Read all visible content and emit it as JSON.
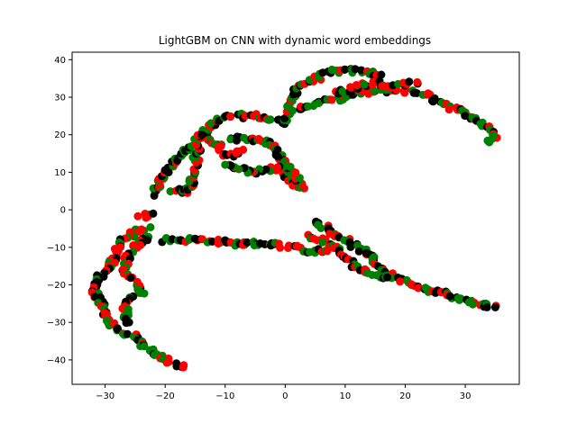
{
  "chart_data": {
    "type": "scatter",
    "title": "LightGBM on CNN with dynamic word embeddings",
    "xlabel": "",
    "ylabel": "",
    "xlim": [
      -35.5,
      39.0
    ],
    "ylim": [
      -46.5,
      42.0
    ],
    "xticks": [
      -30,
      -20,
      -10,
      0,
      10,
      20,
      30
    ],
    "yticks": [
      -40,
      -30,
      -20,
      -10,
      0,
      10,
      20,
      30,
      40
    ],
    "grid": false,
    "legend": "none",
    "colors": [
      "#000000",
      "#ff0000",
      "#008000"
    ],
    "curves": [
      {
        "name": "upper-left-arm",
        "points": [
          [
            -22,
            4
          ],
          [
            -20,
            10
          ],
          [
            -18,
            14
          ],
          [
            -15,
            18
          ],
          [
            -12,
            23
          ],
          [
            -9,
            25
          ],
          [
            -5,
            25
          ],
          [
            -2,
            24
          ],
          [
            0,
            23
          ],
          [
            1,
            28
          ],
          [
            2,
            33
          ],
          [
            5,
            35
          ],
          [
            8,
            37
          ],
          [
            12,
            37
          ],
          [
            16,
            36
          ]
        ]
      },
      {
        "name": "upper-inner-loop",
        "points": [
          [
            -9,
            19
          ],
          [
            -6,
            19
          ],
          [
            -3,
            18
          ],
          [
            -1,
            15
          ],
          [
            0,
            10
          ],
          [
            1,
            7
          ],
          [
            3,
            6
          ],
          [
            2,
            9
          ],
          [
            0,
            12
          ],
          [
            -2,
            11
          ],
          [
            -5,
            10
          ],
          [
            -8,
            11
          ],
          [
            -10,
            12
          ]
        ]
      },
      {
        "name": "small-branches",
        "points": [
          [
            -19,
            5
          ],
          [
            -16,
            5
          ],
          [
            -14,
            20
          ],
          [
            -11,
            17
          ],
          [
            -10,
            14
          ],
          [
            -7,
            16
          ]
        ]
      },
      {
        "name": "upper-right-arm",
        "points": [
          [
            2,
            27
          ],
          [
            7,
            29
          ],
          [
            12,
            31
          ],
          [
            18,
            32
          ],
          [
            23,
            31
          ],
          [
            28,
            27
          ],
          [
            32,
            24
          ],
          [
            34,
            22
          ],
          [
            35,
            20
          ],
          [
            34,
            18
          ]
        ]
      },
      {
        "name": "top-cluster",
        "points": [
          [
            9,
            31
          ],
          [
            12,
            33
          ],
          [
            15,
            34
          ],
          [
            18,
            33
          ],
          [
            22,
            34
          ]
        ]
      },
      {
        "name": "middle-band",
        "points": [
          [
            -20,
            -8
          ],
          [
            -17,
            -8
          ],
          [
            -13,
            -8
          ],
          [
            -9,
            -9
          ],
          [
            -5,
            -9
          ],
          [
            -2,
            -9
          ],
          [
            1,
            -10
          ],
          [
            4,
            -11
          ],
          [
            7,
            -11
          ]
        ]
      },
      {
        "name": "left-arm",
        "points": [
          [
            -23,
            -5
          ],
          [
            -25,
            -6
          ],
          [
            -27,
            -8
          ],
          [
            -28,
            -11
          ],
          [
            -29,
            -15
          ],
          [
            -31,
            -18
          ],
          [
            -32,
            -21
          ],
          [
            -31,
            -24
          ],
          [
            -30,
            -27
          ],
          [
            -29,
            -30
          ],
          [
            -28,
            -32
          ],
          [
            -25,
            -34
          ],
          [
            -23,
            -37
          ],
          [
            -21,
            -39
          ],
          [
            -19,
            -41
          ],
          [
            -17,
            -42
          ]
        ]
      },
      {
        "name": "left-branch",
        "points": [
          [
            -23,
            -7
          ],
          [
            -25,
            -10
          ],
          [
            -26,
            -12
          ],
          [
            -27,
            -16
          ],
          [
            -25,
            -19
          ],
          [
            -24,
            -22
          ],
          [
            -27,
            -25
          ],
          [
            -26,
            -30
          ]
        ]
      },
      {
        "name": "cluster-near-zero",
        "points": [
          [
            -24,
            -2
          ],
          [
            -22,
            -1
          ]
        ]
      },
      {
        "name": "right-lower-arm",
        "points": [
          [
            5,
            -3
          ],
          [
            7,
            -5
          ],
          [
            9,
            -7
          ],
          [
            11,
            -9
          ],
          [
            13,
            -11
          ],
          [
            15,
            -14
          ],
          [
            17,
            -17
          ],
          [
            20,
            -19
          ],
          [
            23,
            -21
          ],
          [
            26,
            -22
          ],
          [
            29,
            -24
          ],
          [
            32,
            -25
          ],
          [
            35,
            -26
          ]
        ]
      },
      {
        "name": "right-lower-inner",
        "points": [
          [
            4,
            -7
          ],
          [
            6,
            -8
          ],
          [
            8,
            -10
          ],
          [
            10,
            -13
          ],
          [
            12,
            -15
          ],
          [
            14,
            -17
          ],
          [
            17,
            -18
          ]
        ]
      }
    ]
  }
}
